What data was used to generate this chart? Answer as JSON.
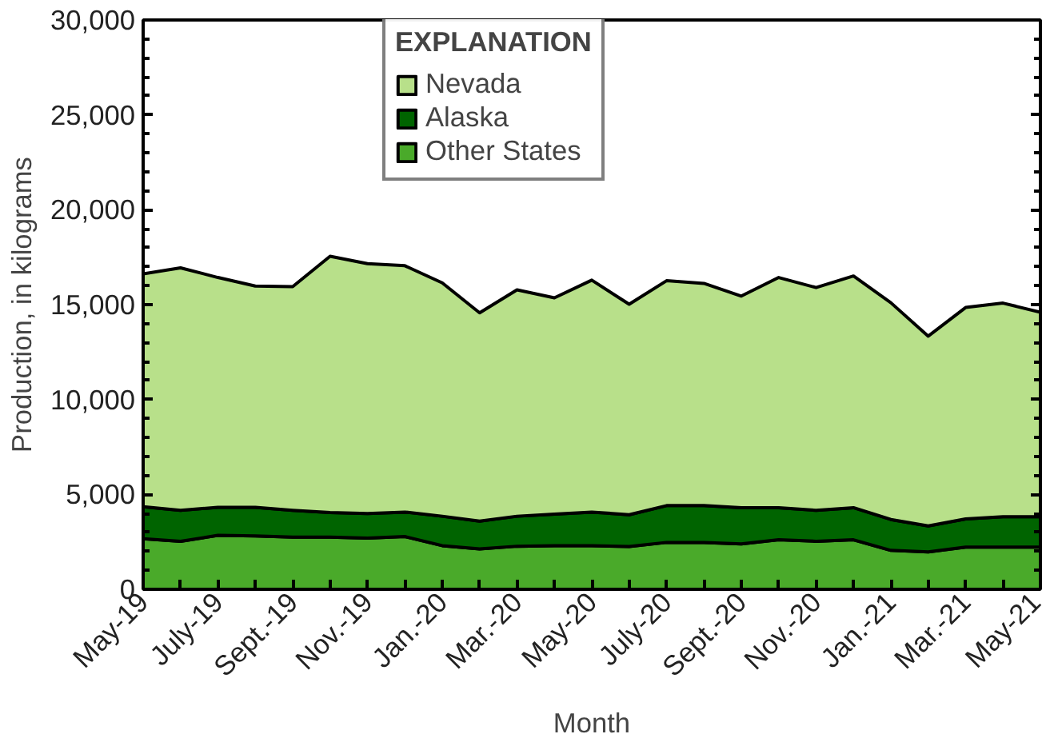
{
  "chart_data": {
    "type": "area",
    "stacked": true,
    "xlabel": "Month",
    "ylabel": "Production, in kilograms",
    "legend_title": "EXPLANATION",
    "legend": "top",
    "grid": false,
    "categories": [
      "May-19",
      null,
      "July-19",
      null,
      "Sept.-19",
      null,
      "Nov.-19",
      null,
      "Jan.-20",
      null,
      "Mar.-20",
      null,
      "May-20",
      null,
      "July-20",
      null,
      "Sept.-20",
      null,
      "Nov.-20",
      null,
      "Jan.-21",
      null,
      "Mar.-21",
      null,
      "May-21"
    ],
    "ylim": [
      0,
      30000
    ],
    "yticks": [
      0,
      {
        "value": 1000,
        "label": null
      },
      {
        "value": 2000,
        "label": null
      },
      {
        "value": 3000,
        "label": null
      },
      {
        "value": 4000,
        "label": null
      },
      {
        "value": 5000,
        "label": "5,000"
      },
      {
        "value": 6000,
        "label": null
      },
      {
        "value": 7000,
        "label": null
      },
      {
        "value": 8000,
        "label": null
      },
      {
        "value": 9000,
        "label": null
      },
      {
        "value": 10000,
        "label": "10,000"
      },
      {
        "value": 11000,
        "label": null
      },
      {
        "value": 12000,
        "label": null
      },
      {
        "value": 13000,
        "label": null
      },
      {
        "value": 14000,
        "label": null
      },
      {
        "value": 15000,
        "label": "15,000"
      },
      {
        "value": 16000,
        "label": null
      },
      {
        "value": 17000,
        "label": null
      },
      {
        "value": 18000,
        "label": null
      },
      {
        "value": 19000,
        "label": null
      },
      {
        "value": 20000,
        "label": "20,000"
      },
      {
        "value": 21000,
        "label": null
      },
      {
        "value": 22000,
        "label": null
      },
      {
        "value": 23000,
        "label": null
      },
      {
        "value": 24000,
        "label": null
      },
      {
        "value": 25000,
        "label": "25,000"
      },
      {
        "value": 26000,
        "label": null
      },
      {
        "value": 27000,
        "label": null
      },
      {
        "value": 28000,
        "label": null
      },
      {
        "value": 29000,
        "label": null
      },
      {
        "value": 30000,
        "label": "30,000"
      }
    ],
    "series": [
      {
        "name": "Other States",
        "color": "#4aaa2a",
        "values": [
          2670,
          2530,
          2840,
          2810,
          2750,
          2750,
          2700,
          2780,
          2300,
          2130,
          2270,
          2300,
          2300,
          2250,
          2470,
          2470,
          2390,
          2610,
          2530,
          2610,
          2050,
          1970,
          2220,
          2220,
          2220
        ]
      },
      {
        "name": "Alaska",
        "color": "#006400",
        "values": [
          1680,
          1630,
          1480,
          1510,
          1410,
          1290,
          1290,
          1290,
          1550,
          1460,
          1580,
          1660,
          1770,
          1680,
          1940,
          1940,
          1910,
          1690,
          1630,
          1690,
          1630,
          1370,
          1490,
          1600,
          1600
        ]
      },
      {
        "name": "Nevada",
        "color": "#b8e08a",
        "values": [
          12270,
          12780,
          12110,
          11660,
          11790,
          13510,
          13170,
          12980,
          12300,
          10980,
          11930,
          11400,
          12220,
          11090,
          11850,
          11710,
          11150,
          12130,
          11740,
          12210,
          11420,
          10000,
          11140,
          11260,
          10780
        ]
      }
    ]
  }
}
